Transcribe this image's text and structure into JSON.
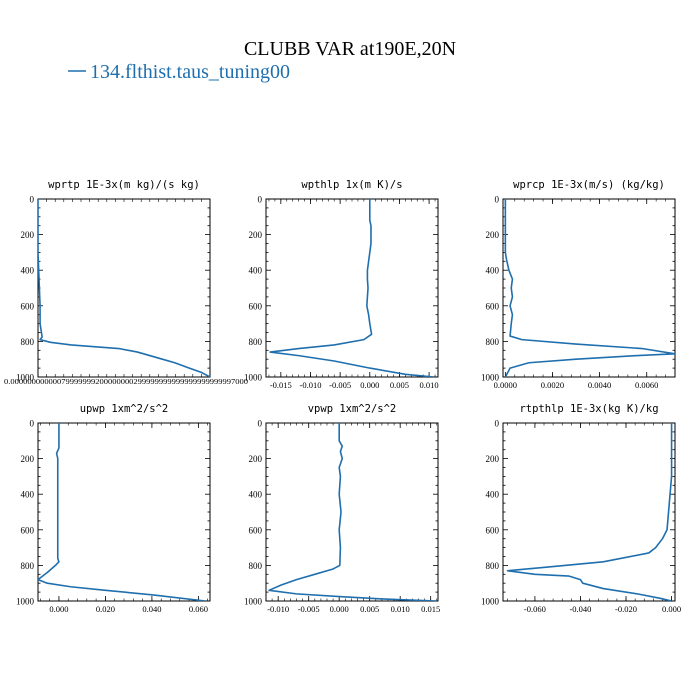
{
  "title": "CLUBB VAR at190E,20N",
  "legend": {
    "label": "134.flthist.taus_tuning00",
    "color": "#1f6fae"
  },
  "line_color": "#1f6fae",
  "chart_data": [
    {
      "type": "line",
      "title": "wprtp  1E-3x(m kg)/(s kg)",
      "ylim": [
        1000,
        0
      ],
      "xlim": [
        0.0,
        8.3e-06
      ],
      "yticks": [
        0,
        200,
        400,
        600,
        800,
        1000
      ],
      "xticks": [],
      "xtick_text": "0.00000000000079999999200000000299999999999999999999997000",
      "series": [
        {
          "x": [
            0,
            0,
            0,
            5e-08,
            1e-07,
            1e-07,
            2e-07,
            1e-07,
            6e-07,
            1.6e-06,
            3.9e-06,
            4.8e-06,
            6e-06,
            6.6e-06,
            7.3e-06,
            7.9e-06,
            8.3e-06
          ],
          "y": [
            0,
            100,
            300,
            450,
            600,
            700,
            775,
            790,
            805,
            820,
            840,
            860,
            900,
            920,
            950,
            975,
            1000
          ]
        }
      ]
    },
    {
      "type": "line",
      "title": "wpthlp  1x(m K)/s",
      "ylim": [
        1000,
        0
      ],
      "xlim": [
        -0.0175,
        0.0115
      ],
      "yticks": [
        0,
        200,
        400,
        600,
        800,
        1000
      ],
      "xticks": [
        "-0.015",
        "-0.010",
        "-0.005",
        "0.000",
        "0.005",
        "0.010"
      ],
      "series": [
        {
          "x": [
            0.0,
            0.0,
            0.0002,
            0.0002,
            -0.0002,
            -0.0004,
            -0.0004,
            -0.0003,
            -0.0004,
            -0.0005,
            -0.0002,
            0.0,
            0.0003,
            -0.001,
            -0.006,
            -0.012,
            -0.0168,
            -0.012,
            -0.006,
            0.0,
            0.006,
            0.0108
          ],
          "y": [
            0,
            120,
            150,
            250,
            350,
            400,
            450,
            500,
            550,
            600,
            650,
            700,
            760,
            790,
            820,
            840,
            860,
            880,
            910,
            950,
            985,
            1000
          ]
        }
      ]
    },
    {
      "type": "line",
      "title": "wprcp  1E-3x(m/s) (kg/kg)",
      "ylim": [
        1000,
        0
      ],
      "xlim": [
        -0.0001,
        0.0072
      ],
      "yticks": [
        0,
        200,
        400,
        600,
        800,
        1000
      ],
      "xticks": [
        "0.0000",
        "0.0020",
        "0.0040",
        "0.0060"
      ],
      "series": [
        {
          "x": [
            0.0,
            0.0,
            5e-05,
            0.00015,
            0.0003,
            0.00025,
            0.0003,
            0.0002,
            0.0003,
            0.00025,
            0.0002,
            0.0007,
            0.003,
            0.0058,
            0.0072,
            0.0055,
            0.003,
            0.001,
            0.0002,
            0.0
          ],
          "y": [
            0,
            300,
            340,
            400,
            450,
            500,
            550,
            600,
            650,
            700,
            770,
            790,
            815,
            840,
            870,
            880,
            900,
            920,
            950,
            1000
          ]
        }
      ]
    },
    {
      "type": "line",
      "title": "upwp  1xm^2/s^2",
      "ylim": [
        1000,
        0
      ],
      "xlim": [
        -0.009,
        0.065
      ],
      "yticks": [
        0,
        200,
        400,
        600,
        800,
        1000
      ],
      "xticks": [
        "0.000",
        "0.020",
        "0.040",
        "0.060"
      ],
      "series": [
        {
          "x": [
            0.0,
            0.0,
            -0.001,
            -0.0005,
            -0.0005,
            -0.0005,
            -0.0005,
            0.0,
            -0.0015,
            -0.005,
            -0.009,
            -0.005,
            0.005,
            0.02,
            0.04,
            0.063
          ],
          "y": [
            0,
            140,
            170,
            200,
            400,
            600,
            760,
            780,
            800,
            840,
            880,
            900,
            920,
            940,
            965,
            1000
          ]
        }
      ]
    },
    {
      "type": "line",
      "title": "vpwp  1xm^2/s^2",
      "ylim": [
        1000,
        0
      ],
      "xlim": [
        -0.012,
        0.0162
      ],
      "yticks": [
        0,
        200,
        400,
        600,
        800,
        1000
      ],
      "xticks": [
        "-0.010",
        "-0.005",
        "0.000",
        "0.005",
        "0.010",
        "0.015"
      ],
      "series": [
        {
          "x": [
            0.0,
            0.0,
            0.0005,
            0.0002,
            0.0005,
            0.0,
            0.0002,
            0.0,
            0.0003,
            0.0,
            0.0002,
            0.0001,
            -0.001,
            -0.004,
            -0.007,
            -0.0095,
            -0.0115,
            -0.007,
            0.0,
            0.008,
            0.016
          ],
          "y": [
            0,
            100,
            130,
            160,
            200,
            250,
            300,
            400,
            500,
            600,
            700,
            800,
            820,
            850,
            880,
            910,
            940,
            960,
            975,
            990,
            1000
          ]
        }
      ]
    },
    {
      "type": "line",
      "title": "rtpthlp  1E-3x(kg K)/kg",
      "ylim": [
        1000,
        0
      ],
      "xlim": [
        -0.074,
        0.0015
      ],
      "yticks": [
        0,
        200,
        400,
        600,
        800,
        1000
      ],
      "xticks": [
        "-0.060",
        "-0.040",
        "-0.020",
        "0.000"
      ],
      "series": [
        {
          "x": [
            0.0,
            0.0,
            -0.001,
            -0.002,
            -0.004,
            -0.007,
            -0.01,
            -0.03,
            -0.055,
            -0.072,
            -0.06,
            -0.045,
            -0.04,
            -0.039,
            -0.03,
            -0.015,
            -0.005,
            0.0
          ],
          "y": [
            0,
            300,
            450,
            600,
            650,
            700,
            730,
            780,
            810,
            830,
            850,
            860,
            880,
            900,
            930,
            960,
            985,
            1000
          ]
        }
      ]
    }
  ]
}
